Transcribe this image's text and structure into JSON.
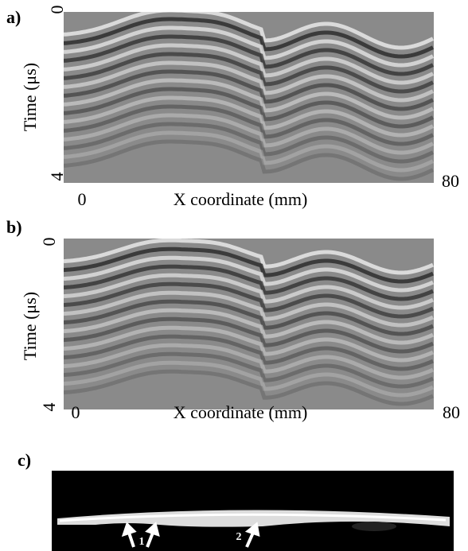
{
  "panels": [
    {
      "label": "a)",
      "y_label": "Time (μs)",
      "y_ticks": [
        "0",
        "4"
      ],
      "x_label": "X coordinate (mm)",
      "x_ticks": [
        "0",
        "80"
      ]
    },
    {
      "label": "b)",
      "y_label": "Time (μs)",
      "y_ticks": [
        "0",
        "4"
      ],
      "x_label": "X coordinate (mm)",
      "x_ticks": [
        "0",
        "80"
      ]
    },
    {
      "label": "c)",
      "annotations": [
        "1",
        "2"
      ]
    }
  ]
}
